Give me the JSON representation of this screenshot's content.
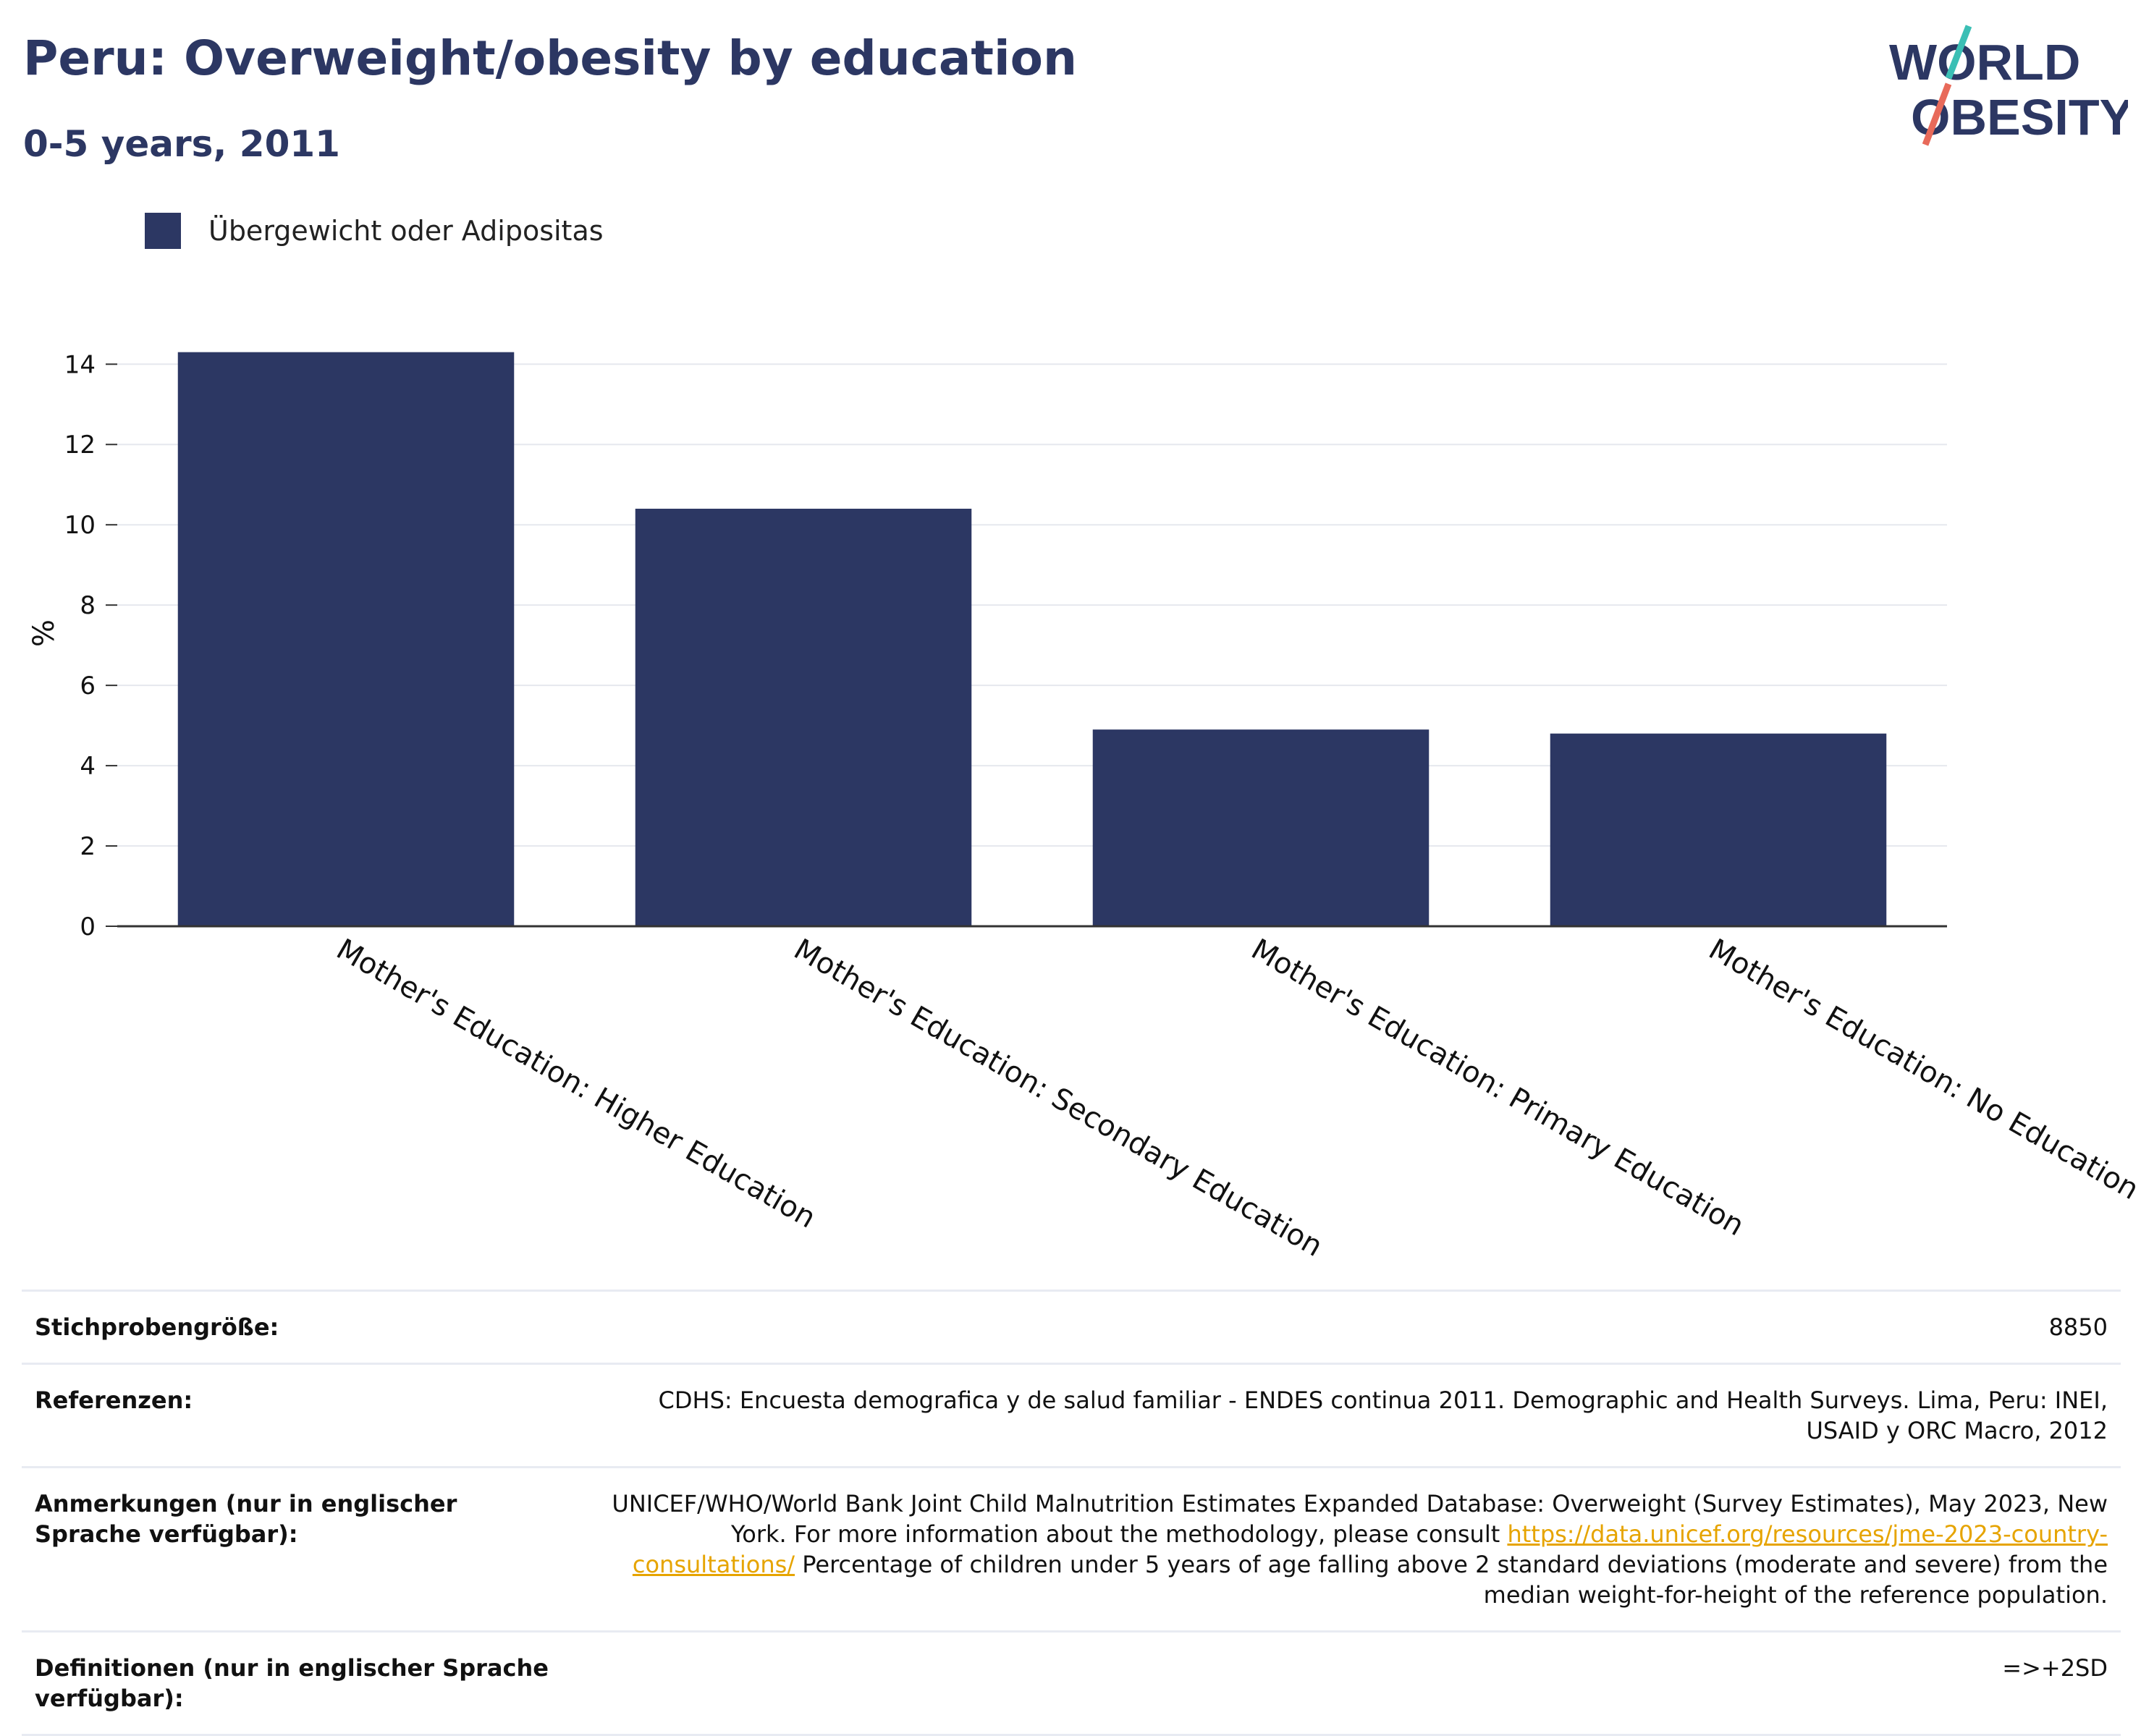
{
  "header": {
    "title": "Peru: Overweight/obesity by education",
    "subtitle": "0-5 years, 2011"
  },
  "logo": {
    "line1": "WORLD",
    "line2": "OBESITY",
    "colors": {
      "text": "#2c3763",
      "slash_top": "#3bbfb5",
      "slash_bottom": "#e86a5a"
    }
  },
  "legend": {
    "label": "Übergewicht oder Adipositas",
    "color": "#2c3763"
  },
  "chart_data": {
    "type": "bar",
    "categories": [
      "Mother's Education: Higher Education",
      "Mother's Education: Secondary Education",
      "Mother's Education: Primary Education",
      "Mother's Education: No Education"
    ],
    "series": [
      {
        "name": "Übergewicht oder Adipositas",
        "values": [
          14.3,
          10.4,
          4.9,
          4.8
        ],
        "color": "#2c3763"
      }
    ],
    "ylabel": "%",
    "ylim": [
      0,
      14.6
    ],
    "yticks": [
      0,
      2,
      4,
      6,
      8,
      10,
      12,
      14
    ],
    "grid": true,
    "legend_position": "top-left"
  },
  "info": {
    "sample_size": {
      "label": "Stichprobengröße:",
      "value": "8850"
    },
    "references": {
      "label": "Referenzen:",
      "value": "CDHS: Encuesta demografica y de salud familiar - ENDES continua 2011. Demographic and Health Surveys. Lima, Peru: INEI, USAID y ORC Macro, 2012"
    },
    "notes": {
      "label": "Anmerkungen (nur in englischer Sprache verfügbar):",
      "text_before": "UNICEF/WHO/World Bank Joint Child Malnutrition Estimates Expanded Database: Overweight (Survey Estimates), May 2023, New York. For more information about the methodology, please consult ",
      "link": "https://data.unicef.org/resources/jme-2023-country-consultations/",
      "text_after": " Percentage of children under 5 years of age falling above 2 standard deviations (moderate and severe) from the median weight-for-height of the reference population."
    },
    "definitions": {
      "label": "Definitionen (nur in englischer Sprache verfügbar):",
      "value": "=>+2SD"
    }
  }
}
